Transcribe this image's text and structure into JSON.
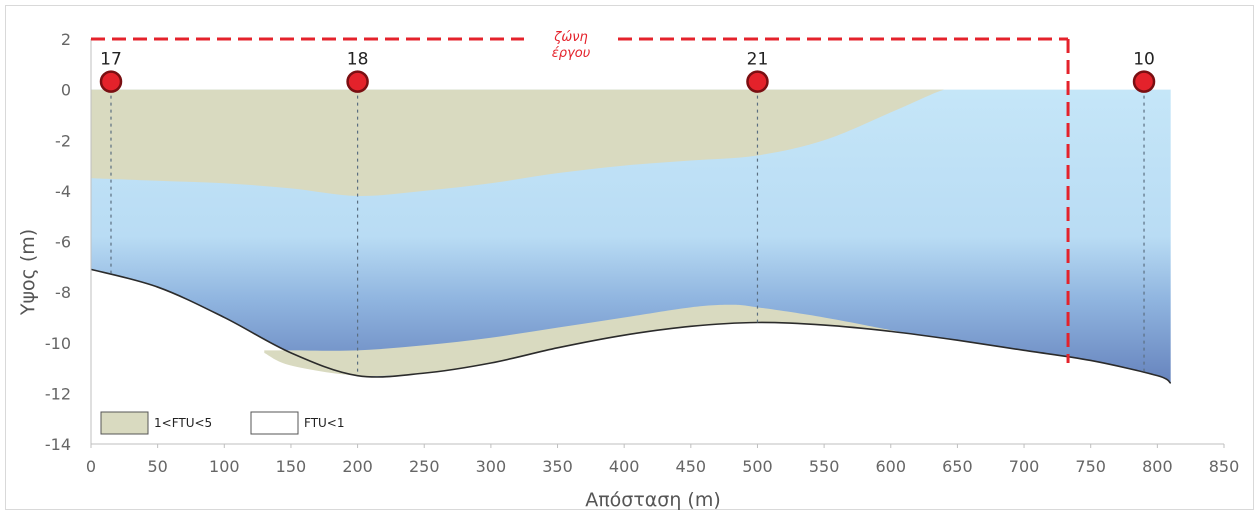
{
  "chart_data": {
    "type": "area",
    "title": "",
    "xlabel": "Απόσταση (m)",
    "ylabel": "Υψος (m)",
    "xlim": [
      0,
      850
    ],
    "ylim": [
      -14,
      2
    ],
    "xticks": [
      0,
      50,
      100,
      150,
      200,
      250,
      300,
      350,
      400,
      450,
      500,
      550,
      600,
      650,
      700,
      750,
      800,
      850
    ],
    "yticks": [
      2,
      0,
      -2,
      -4,
      -6,
      -8,
      -10,
      -12,
      -14
    ],
    "grid": false,
    "legend_position": "bottom-left",
    "legend": [
      {
        "label": "1<FTU<5",
        "color": "#d9dac0"
      },
      {
        "label": "FTU<1",
        "color": "#ffffff"
      }
    ],
    "series": [
      {
        "name": "1<FTU<5",
        "role": "upper turbid layer",
        "x": [
          0,
          50,
          100,
          150,
          200,
          250,
          300,
          350,
          400,
          450,
          500,
          550,
          600,
          630,
          640
        ],
        "top": [
          0,
          0,
          0,
          0,
          0,
          0,
          0,
          0,
          0,
          0,
          0,
          0,
          0,
          0,
          0
        ],
        "bottom": [
          -3.5,
          -3.6,
          -3.7,
          -3.9,
          -4.2,
          -4.0,
          -3.7,
          -3.3,
          -3.0,
          -2.8,
          -2.6,
          -2.0,
          -0.9,
          -0.2,
          0
        ]
      },
      {
        "name": "1<FTU<5",
        "role": "lower turbid layer",
        "x": [
          130,
          150,
          200,
          250,
          300,
          350,
          400,
          450,
          480,
          500,
          550,
          600,
          620
        ],
        "top": [
          -10.3,
          -10.3,
          -10.3,
          -10.1,
          -9.8,
          -9.4,
          -9.0,
          -8.6,
          -8.5,
          -8.6,
          -9.0,
          -9.5,
          -9.7
        ],
        "bottom": [
          -10.4,
          -10.9,
          -11.3,
          -11.2,
          -10.8,
          -10.2,
          -9.7,
          -9.35,
          -9.25,
          -9.2,
          -9.3,
          -9.55,
          -9.7
        ]
      },
      {
        "name": "",
        "role": "seabed",
        "x": [
          0,
          50,
          100,
          150,
          200,
          250,
          300,
          350,
          400,
          450,
          500,
          550,
          600,
          650,
          700,
          750,
          800,
          810
        ],
        "y": [
          -7.1,
          -7.8,
          -9.0,
          -10.4,
          -11.3,
          -11.2,
          -10.8,
          -10.2,
          -9.7,
          -9.35,
          -9.2,
          -9.3,
          -9.55,
          -9.9,
          -10.3,
          -10.7,
          -11.3,
          -11.6
        ]
      }
    ],
    "water_extent_x": [
      0,
      810
    ],
    "stations": [
      {
        "label": "17",
        "x": 15
      },
      {
        "label": "18",
        "x": 200
      },
      {
        "label": "21",
        "x": 500
      },
      {
        "label": "10",
        "x": 790
      }
    ],
    "project_zone": {
      "label_line1": "ζώνη",
      "label_line2": "έργου",
      "x_start": 0,
      "x_end": 733,
      "y_top": 2
    },
    "colors": {
      "turbid": "#d9dac0",
      "water_top": "#c5e6f8",
      "water_bottom": "#6f8cc4",
      "zone": "#e4222b",
      "station_fill": "#e4222b",
      "station_stroke": "#7a0f12",
      "seabed_line": "#2b2b2b",
      "axis": "#bfbfbf"
    }
  }
}
